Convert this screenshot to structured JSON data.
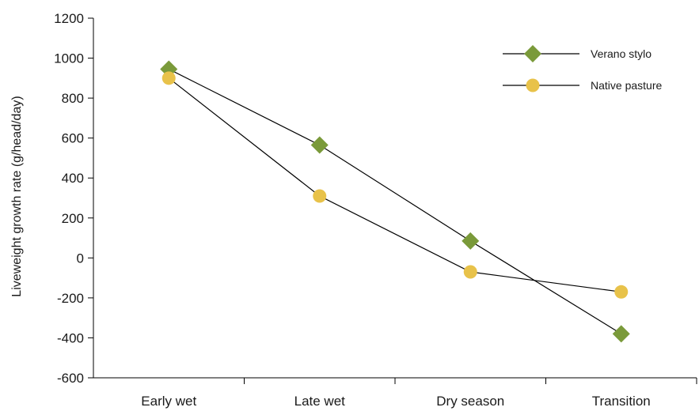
{
  "chart_data": {
    "type": "line",
    "categories": [
      "Early wet",
      "Late wet",
      "Dry season",
      "Transition"
    ],
    "ylabel": "Liveweight growth rate (g/head/day)",
    "xlabel": "",
    "ylim": [
      -600,
      1200
    ],
    "yticks": [
      1200,
      1000,
      800,
      600,
      400,
      200,
      0,
      -200,
      -400,
      -600
    ],
    "grid": false,
    "legend_position": "top-right",
    "series": [
      {
        "name": "Verano stylo",
        "values": [
          945,
          565,
          85,
          -380
        ],
        "color": "#7a9a3a",
        "marker": "diamond"
      },
      {
        "name": "Native pasture",
        "values": [
          900,
          310,
          -70,
          -170
        ],
        "color": "#e8c24a",
        "marker": "circle"
      }
    ]
  }
}
